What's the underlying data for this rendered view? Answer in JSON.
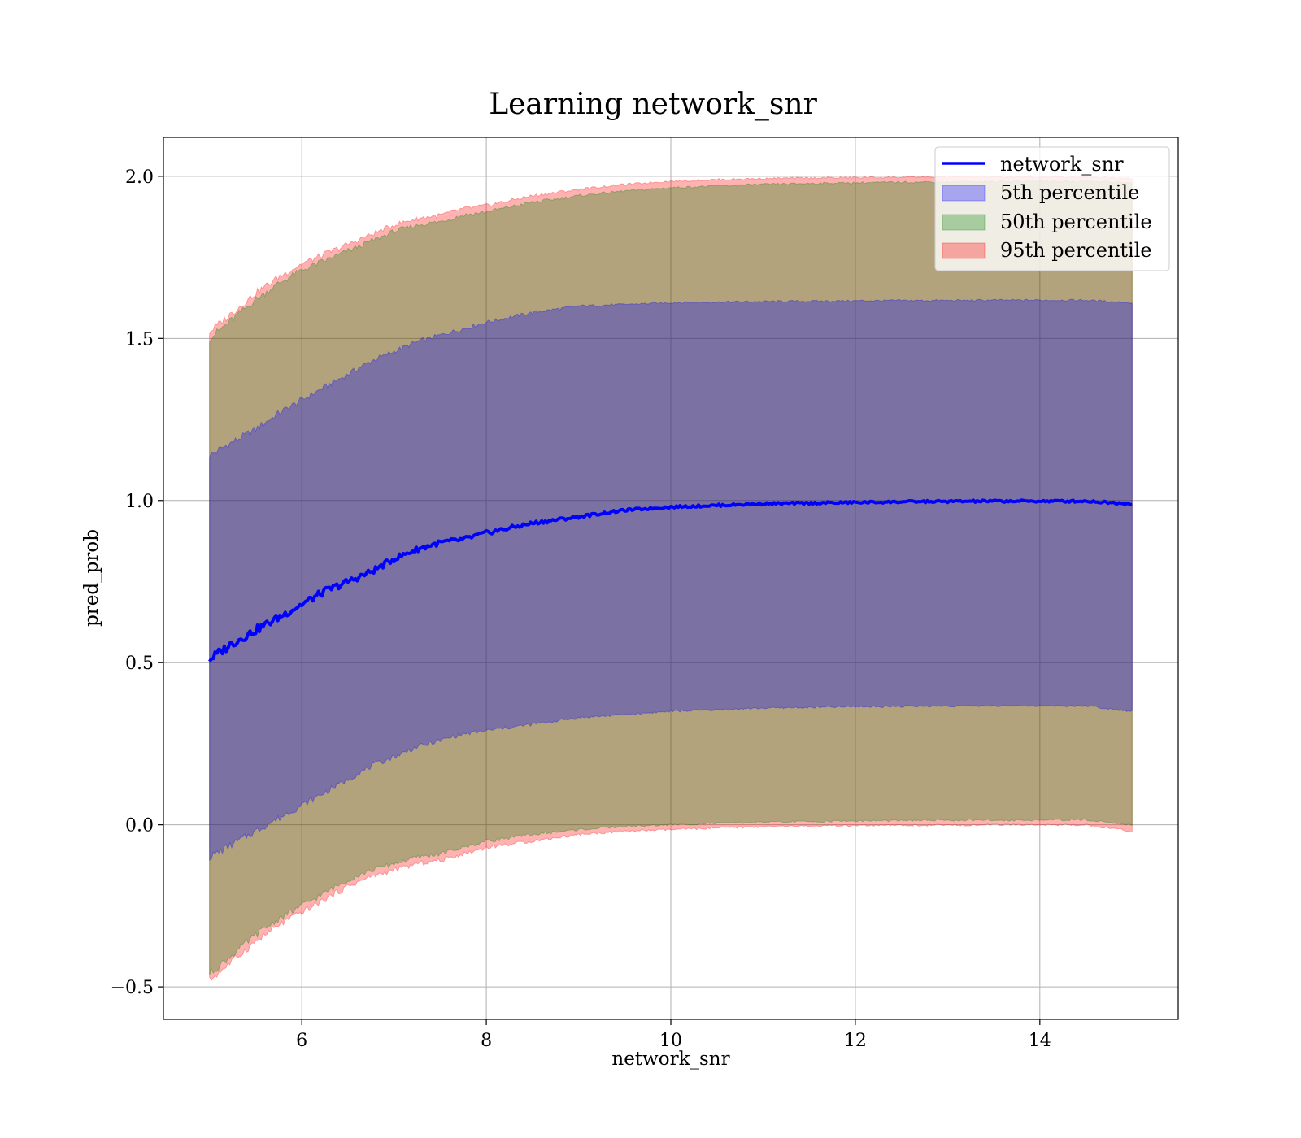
{
  "chart_data": {
    "type": "area",
    "title": "Learning network_snr",
    "xlabel": "network_snr",
    "ylabel": "pred_prob",
    "xlim": [
      4.5,
      15.5
    ],
    "ylim": [
      -0.6,
      2.12
    ],
    "xticks": [
      6,
      8,
      10,
      12,
      14
    ],
    "yticks": [
      -0.5,
      0.0,
      0.5,
      1.0,
      1.5,
      2.0
    ],
    "xtick_labels": [
      "6",
      "8",
      "10",
      "12",
      "14"
    ],
    "ytick_labels": [
      "−0.5",
      "0.0",
      "0.5",
      "1.0",
      "1.5",
      "2.0"
    ],
    "grid": true,
    "legend_position": "top-right",
    "x": [
      5,
      5.25,
      5.5,
      5.75,
      6,
      6.25,
      6.5,
      6.75,
      7,
      7.25,
      7.5,
      7.75,
      8,
      8.5,
      9,
      9.5,
      10,
      10.5,
      11,
      11.5,
      12,
      12.5,
      13,
      13.5,
      14,
      14.5,
      15
    ],
    "line": {
      "name": "network_snr",
      "color": "#0000ff",
      "values": [
        0.51,
        0.56,
        0.6,
        0.64,
        0.68,
        0.72,
        0.75,
        0.78,
        0.82,
        0.85,
        0.87,
        0.88,
        0.9,
        0.93,
        0.95,
        0.97,
        0.98,
        0.985,
        0.99,
        0.992,
        0.994,
        0.996,
        0.997,
        0.998,
        0.998,
        0.998,
        0.99
      ]
    },
    "bands": [
      {
        "name": "5th percentile",
        "color": "#0000ff",
        "lower": [
          -0.1,
          -0.06,
          -0.02,
          0.02,
          0.06,
          0.1,
          0.14,
          0.18,
          0.21,
          0.24,
          0.26,
          0.28,
          0.29,
          0.31,
          0.33,
          0.34,
          0.35,
          0.355,
          0.36,
          0.362,
          0.364,
          0.365,
          0.366,
          0.367,
          0.367,
          0.367,
          0.35
        ],
        "upper": [
          1.14,
          1.18,
          1.22,
          1.27,
          1.31,
          1.35,
          1.39,
          1.43,
          1.46,
          1.49,
          1.51,
          1.53,
          1.55,
          1.58,
          1.6,
          1.605,
          1.61,
          1.612,
          1.614,
          1.615,
          1.616,
          1.617,
          1.617,
          1.618,
          1.618,
          1.618,
          1.61
        ]
      },
      {
        "name": "50th percentile",
        "color": "#008000",
        "lower": [
          -0.46,
          -0.4,
          -0.34,
          -0.29,
          -0.25,
          -0.21,
          -0.17,
          -0.14,
          -0.12,
          -0.1,
          -0.09,
          -0.07,
          -0.05,
          -0.03,
          -0.015,
          -0.005,
          0.0,
          0.005,
          0.008,
          0.01,
          0.012,
          0.013,
          0.014,
          0.014,
          0.015,
          0.015,
          0.0
        ],
        "upper": [
          1.5,
          1.56,
          1.62,
          1.67,
          1.71,
          1.74,
          1.77,
          1.8,
          1.83,
          1.85,
          1.86,
          1.88,
          1.89,
          1.92,
          1.94,
          1.955,
          1.965,
          1.97,
          1.975,
          1.978,
          1.98,
          1.982,
          1.983,
          1.984,
          1.985,
          1.985,
          1.98
        ]
      },
      {
        "name": "95th percentile",
        "color": "#ff0000",
        "lower": [
          -0.48,
          -0.42,
          -0.36,
          -0.31,
          -0.27,
          -0.23,
          -0.19,
          -0.16,
          -0.14,
          -0.12,
          -0.11,
          -0.09,
          -0.07,
          -0.05,
          -0.03,
          -0.02,
          -0.015,
          -0.01,
          -0.006,
          -0.004,
          -0.003,
          -0.002,
          -0.001,
          0.0,
          0.0,
          0.0,
          -0.02
        ],
        "upper": [
          1.52,
          1.58,
          1.64,
          1.69,
          1.73,
          1.76,
          1.79,
          1.82,
          1.85,
          1.87,
          1.88,
          1.9,
          1.91,
          1.94,
          1.96,
          1.975,
          1.985,
          1.99,
          1.993,
          1.995,
          1.996,
          1.997,
          1.998,
          1.998,
          1.998,
          1.998,
          1.995
        ]
      }
    ]
  }
}
